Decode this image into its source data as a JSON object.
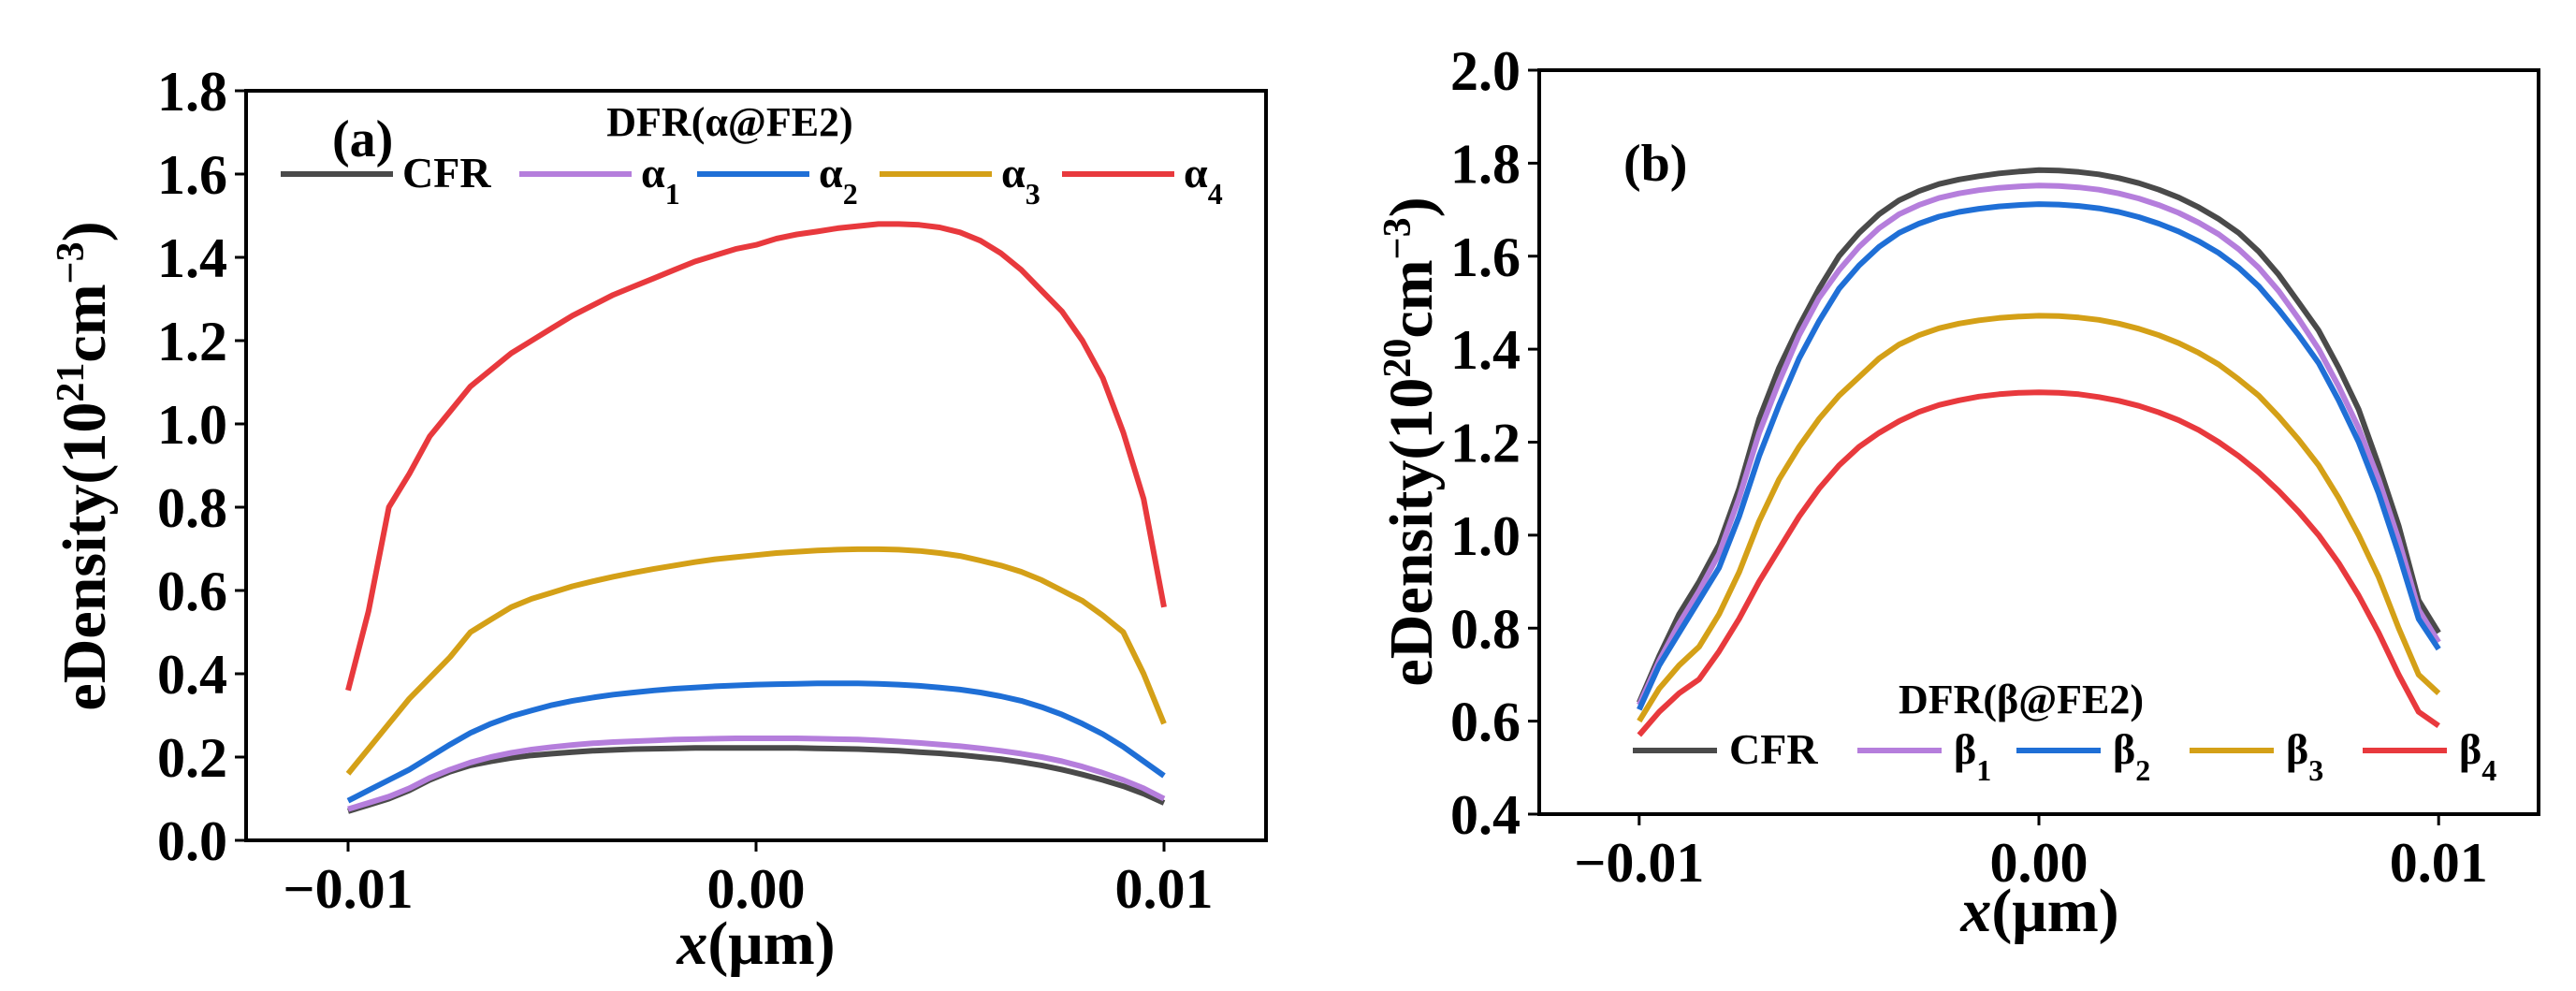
{
  "chart_data": [
    {
      "type": "line",
      "panel_label": "(a)",
      "xlabel_italic": "x",
      "xlabel_rest": "(μm)",
      "ylabel_base": "eDensity(10",
      "ylabel_exp": "21",
      "ylabel_unit": "cm",
      "ylabel_unit_exp": "−3",
      "ylabel_close": ")",
      "xlim": [
        -0.0125,
        0.0125
      ],
      "ylim": [
        0.0,
        1.8
      ],
      "xticks": [
        -0.01,
        0.0,
        0.01
      ],
      "xtick_labels": [
        "−0.01",
        "0.00",
        "0.01"
      ],
      "yticks": [
        0.0,
        0.2,
        0.4,
        0.6,
        0.8,
        1.0,
        1.2,
        1.4,
        1.6,
        1.8
      ],
      "ytick_labels": [
        "0.0",
        "0.2",
        "0.4",
        "0.6",
        "0.8",
        "1.0",
        "1.2",
        "1.4",
        "1.6",
        "1.8"
      ],
      "legend_title": "DFR(α@FE2)",
      "legend_position": "upper",
      "x": [
        -0.01,
        -0.0095,
        -0.009,
        -0.0085,
        -0.008,
        -0.0075,
        -0.007,
        -0.0065,
        -0.006,
        -0.0055,
        -0.005,
        -0.0045,
        -0.004,
        -0.0035,
        -0.003,
        -0.0025,
        -0.002,
        -0.0015,
        -0.001,
        -0.0005,
        0.0,
        0.0005,
        0.001,
        0.0015,
        0.002,
        0.0025,
        0.003,
        0.0035,
        0.004,
        0.0045,
        0.005,
        0.0055,
        0.006,
        0.0065,
        0.007,
        0.0075,
        0.008,
        0.0085,
        0.009,
        0.0095,
        0.01
      ],
      "series": [
        {
          "name": "CFR",
          "label_main": "CFR",
          "label_sub": "",
          "color": "#4a4a4a",
          "values": [
            0.07,
            0.085,
            0.1,
            0.12,
            0.145,
            0.165,
            0.18,
            0.19,
            0.198,
            0.204,
            0.208,
            0.212,
            0.215,
            0.217,
            0.219,
            0.22,
            0.221,
            0.222,
            0.222,
            0.222,
            0.222,
            0.222,
            0.222,
            0.221,
            0.22,
            0.219,
            0.217,
            0.215,
            0.212,
            0.209,
            0.205,
            0.2,
            0.195,
            0.188,
            0.18,
            0.17,
            0.158,
            0.145,
            0.13,
            0.112,
            0.09
          ]
        },
        {
          "name": "α1",
          "label_main": "α",
          "label_sub": "1",
          "color": "#b57edc",
          "values": [
            0.075,
            0.09,
            0.105,
            0.125,
            0.15,
            0.17,
            0.187,
            0.2,
            0.21,
            0.218,
            0.224,
            0.229,
            0.233,
            0.236,
            0.238,
            0.24,
            0.242,
            0.243,
            0.244,
            0.245,
            0.245,
            0.245,
            0.245,
            0.244,
            0.243,
            0.242,
            0.24,
            0.237,
            0.234,
            0.23,
            0.226,
            0.221,
            0.215,
            0.208,
            0.2,
            0.19,
            0.177,
            0.162,
            0.145,
            0.125,
            0.1
          ]
        },
        {
          "name": "α2",
          "label_main": "α",
          "label_sub": "2",
          "color": "#1f6fd6",
          "values": [
            0.095,
            0.12,
            0.145,
            0.17,
            0.2,
            0.23,
            0.258,
            0.28,
            0.298,
            0.312,
            0.325,
            0.335,
            0.343,
            0.35,
            0.355,
            0.36,
            0.364,
            0.367,
            0.37,
            0.372,
            0.374,
            0.375,
            0.376,
            0.377,
            0.377,
            0.377,
            0.376,
            0.374,
            0.371,
            0.367,
            0.362,
            0.355,
            0.346,
            0.335,
            0.32,
            0.302,
            0.28,
            0.255,
            0.225,
            0.19,
            0.155
          ]
        },
        {
          "name": "α3",
          "label_main": "α",
          "label_sub": "3",
          "color": "#d4a017",
          "values": [
            0.16,
            0.22,
            0.28,
            0.34,
            0.39,
            0.44,
            0.5,
            0.53,
            0.56,
            0.58,
            0.595,
            0.61,
            0.622,
            0.633,
            0.643,
            0.652,
            0.66,
            0.668,
            0.675,
            0.68,
            0.685,
            0.69,
            0.693,
            0.696,
            0.698,
            0.699,
            0.699,
            0.698,
            0.695,
            0.69,
            0.683,
            0.672,
            0.66,
            0.645,
            0.625,
            0.6,
            0.575,
            0.54,
            0.5,
            0.4,
            0.28
          ]
        },
        {
          "name": "α4",
          "label_main": "α",
          "label_sub": "4",
          "color": "#e8393d",
          "values": [
            0.36,
            0.55,
            0.8,
            0.88,
            0.97,
            1.03,
            1.09,
            1.13,
            1.17,
            1.2,
            1.23,
            1.26,
            1.285,
            1.31,
            1.33,
            1.35,
            1.37,
            1.39,
            1.405,
            1.42,
            1.43,
            1.445,
            1.455,
            1.462,
            1.47,
            1.475,
            1.48,
            1.48,
            1.478,
            1.472,
            1.46,
            1.44,
            1.41,
            1.37,
            1.32,
            1.27,
            1.2,
            1.11,
            0.98,
            0.82,
            0.56
          ]
        }
      ]
    },
    {
      "type": "line",
      "panel_label": "(b)",
      "xlabel_italic": "x",
      "xlabel_rest": "(μm)",
      "ylabel_base": "eDensity(10",
      "ylabel_exp": "20",
      "ylabel_unit": "cm",
      "ylabel_unit_exp": "−3",
      "ylabel_close": ")",
      "xlim": [
        -0.0125,
        0.0125
      ],
      "ylim": [
        0.4,
        2.0
      ],
      "xticks": [
        -0.01,
        0.0,
        0.01
      ],
      "xtick_labels": [
        "−0.01",
        "0.00",
        "0.01"
      ],
      "yticks": [
        0.4,
        0.6,
        0.8,
        1.0,
        1.2,
        1.4,
        1.6,
        1.8,
        2.0
      ],
      "ytick_labels": [
        "0.4",
        "0.6",
        "0.8",
        "1.0",
        "1.2",
        "1.4",
        "1.6",
        "1.8",
        "2.0"
      ],
      "legend_title": "DFR(β@FE2)",
      "legend_position": "lower",
      "x": [
        -0.01,
        -0.0095,
        -0.009,
        -0.0085,
        -0.008,
        -0.0075,
        -0.007,
        -0.0065,
        -0.006,
        -0.0055,
        -0.005,
        -0.0045,
        -0.004,
        -0.0035,
        -0.003,
        -0.0025,
        -0.002,
        -0.0015,
        -0.001,
        -0.0005,
        0.0,
        0.0005,
        0.001,
        0.0015,
        0.002,
        0.0025,
        0.003,
        0.0035,
        0.004,
        0.0045,
        0.005,
        0.0055,
        0.006,
        0.0065,
        0.007,
        0.0075,
        0.008,
        0.0085,
        0.009,
        0.0095,
        0.01
      ],
      "series": [
        {
          "name": "CFR",
          "label_main": "CFR",
          "label_sub": "",
          "color": "#4a4a4a",
          "values": [
            0.64,
            0.74,
            0.83,
            0.9,
            0.98,
            1.1,
            1.25,
            1.36,
            1.45,
            1.53,
            1.6,
            1.65,
            1.69,
            1.72,
            1.74,
            1.755,
            1.765,
            1.772,
            1.778,
            1.782,
            1.785,
            1.784,
            1.781,
            1.776,
            1.768,
            1.757,
            1.743,
            1.726,
            1.705,
            1.68,
            1.65,
            1.61,
            1.56,
            1.5,
            1.44,
            1.36,
            1.27,
            1.15,
            1.02,
            0.86,
            0.79
          ]
        },
        {
          "name": "β1",
          "label_main": "β",
          "label_sub": "1",
          "color": "#b57edc",
          "values": [
            0.635,
            0.73,
            0.81,
            0.88,
            0.96,
            1.08,
            1.22,
            1.33,
            1.43,
            1.51,
            1.57,
            1.62,
            1.66,
            1.69,
            1.71,
            1.725,
            1.735,
            1.742,
            1.747,
            1.75,
            1.752,
            1.751,
            1.748,
            1.743,
            1.735,
            1.724,
            1.71,
            1.693,
            1.672,
            1.647,
            1.615,
            1.575,
            1.525,
            1.465,
            1.4,
            1.32,
            1.23,
            1.12,
            0.99,
            0.84,
            0.77
          ]
        },
        {
          "name": "β2",
          "label_main": "β",
          "label_sub": "2",
          "color": "#1f6fd6",
          "values": [
            0.625,
            0.72,
            0.79,
            0.86,
            0.93,
            1.04,
            1.17,
            1.28,
            1.38,
            1.46,
            1.53,
            1.58,
            1.62,
            1.65,
            1.67,
            1.685,
            1.695,
            1.702,
            1.707,
            1.71,
            1.712,
            1.711,
            1.708,
            1.703,
            1.695,
            1.684,
            1.67,
            1.653,
            1.632,
            1.607,
            1.575,
            1.535,
            1.485,
            1.43,
            1.37,
            1.29,
            1.2,
            1.09,
            0.96,
            0.82,
            0.755
          ]
        },
        {
          "name": "β3",
          "label_main": "β",
          "label_sub": "3",
          "color": "#d4a017",
          "values": [
            0.6,
            0.67,
            0.72,
            0.76,
            0.83,
            0.92,
            1.03,
            1.12,
            1.19,
            1.25,
            1.3,
            1.34,
            1.38,
            1.41,
            1.43,
            1.445,
            1.455,
            1.462,
            1.467,
            1.47,
            1.472,
            1.471,
            1.468,
            1.463,
            1.455,
            1.444,
            1.43,
            1.413,
            1.392,
            1.367,
            1.335,
            1.3,
            1.255,
            1.205,
            1.15,
            1.08,
            1.0,
            0.91,
            0.8,
            0.7,
            0.66
          ]
        },
        {
          "name": "β4",
          "label_main": "β",
          "label_sub": "4",
          "color": "#e8393d",
          "values": [
            0.57,
            0.62,
            0.66,
            0.69,
            0.75,
            0.82,
            0.9,
            0.97,
            1.04,
            1.1,
            1.15,
            1.19,
            1.22,
            1.245,
            1.265,
            1.28,
            1.29,
            1.298,
            1.303,
            1.306,
            1.307,
            1.306,
            1.303,
            1.297,
            1.289,
            1.278,
            1.264,
            1.247,
            1.226,
            1.2,
            1.17,
            1.135,
            1.095,
            1.05,
            1.0,
            0.94,
            0.87,
            0.79,
            0.7,
            0.62,
            0.59
          ]
        }
      ]
    }
  ]
}
